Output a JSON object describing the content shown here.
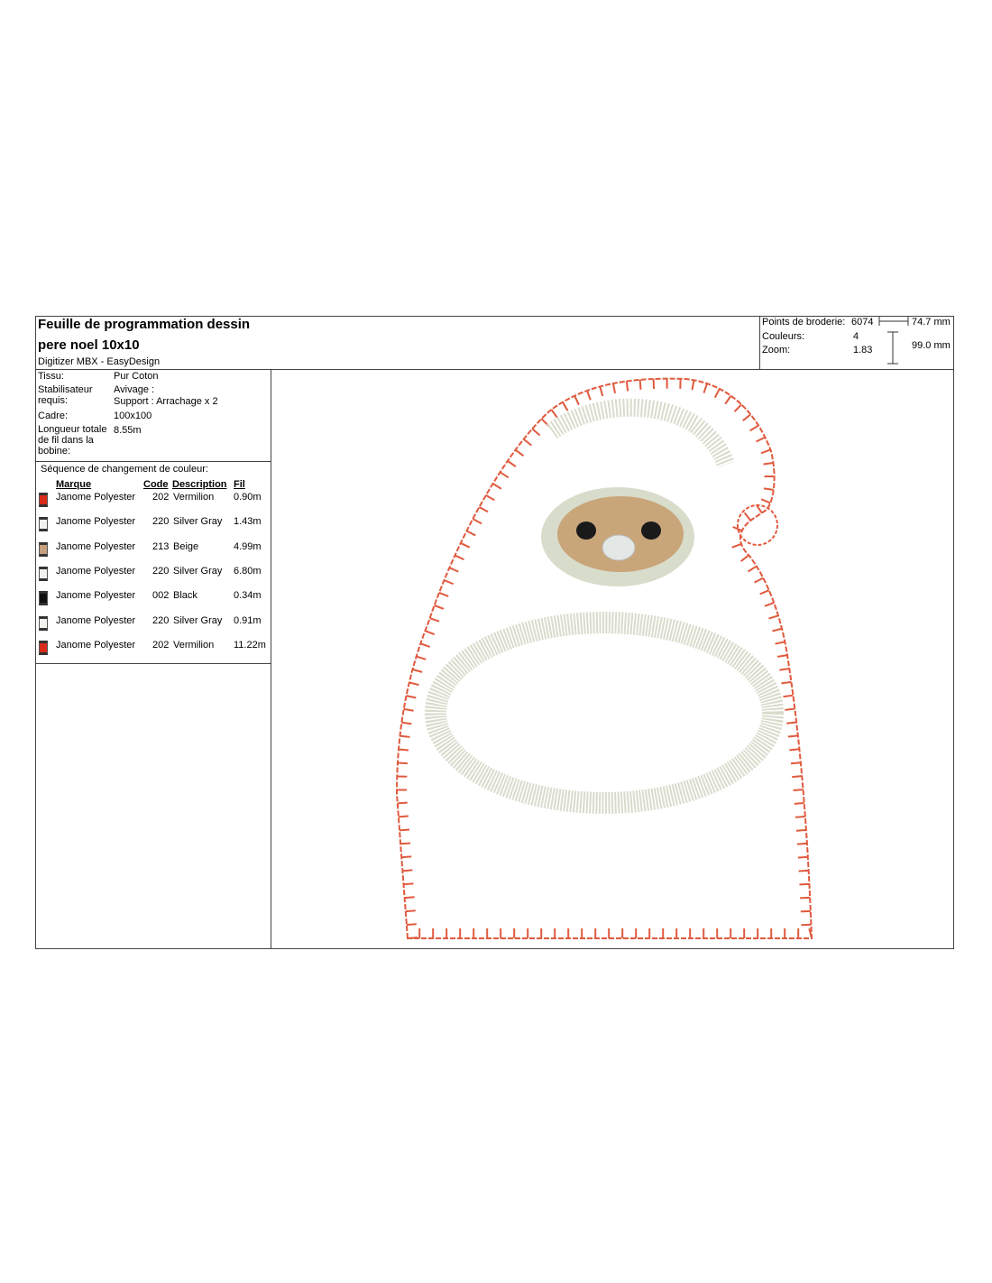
{
  "header": {
    "title_line1": "Feuille de programmation dessin",
    "title_line2": "pere noel 10x10",
    "subtitle": "Digitizer MBX - EasyDesign"
  },
  "stats": {
    "stitches_label": "Points de broderie:",
    "stitches": 6074,
    "colors_label": "Couleurs:",
    "colors": 4,
    "zoom_label": "Zoom:",
    "zoom": 1.83,
    "width": "74.7 mm",
    "height": "99.0 mm"
  },
  "info": {
    "fabric_label": "Tissu:",
    "fabric": "Pur Coton",
    "stabilizer_label": "Stabilisateur requis:",
    "stabilizer_line1": "Avivage :",
    "stabilizer_line2": "Support : Arrachage x 2",
    "frame_label": "Cadre:",
    "frame": "100x100",
    "thread_label": "Longueur totale de fil dans la bobine:",
    "thread": "8.55m"
  },
  "sequence": {
    "title": "Séquence de changement de couleur:",
    "headers": [
      "Marque",
      "Code",
      "Description",
      "Fil"
    ],
    "rows": [
      {
        "brand": "Janome Polyester",
        "code": "202",
        "description": "Vermilion",
        "length": "0.90m",
        "color": "#d92a1c"
      },
      {
        "brand": "Janome Polyester",
        "code": "220",
        "description": "Silver Gray",
        "length": "1.43m",
        "color": "#f2f2ee"
      },
      {
        "brand": "Janome Polyester",
        "code": "213",
        "description": "Beige",
        "length": "4.99m",
        "color": "#c7a07e"
      },
      {
        "brand": "Janome Polyester",
        "code": "220",
        "description": "Silver Gray",
        "length": "6.80m",
        "color": "#f2f2ee"
      },
      {
        "brand": "Janome Polyester",
        "code": "002",
        "description": "Black",
        "length": "0.34m",
        "color": "#111111"
      },
      {
        "brand": "Janome Polyester",
        "code": "220",
        "description": "Silver Gray",
        "length": "0.91m",
        "color": "#f2f2ee"
      },
      {
        "brand": "Janome Polyester",
        "code": "202",
        "description": "Vermilion",
        "length": "11.22m",
        "color": "#d92a1c"
      }
    ]
  }
}
